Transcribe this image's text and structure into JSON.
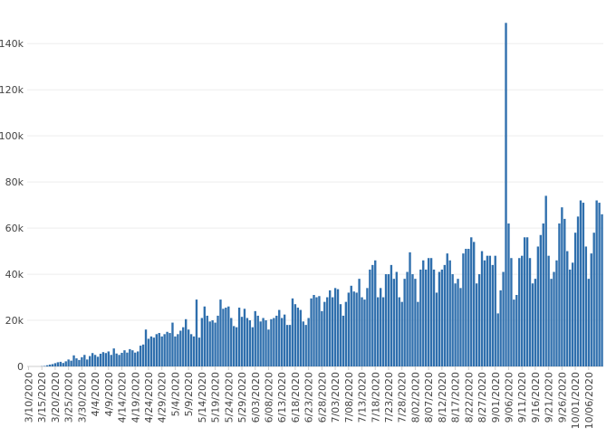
{
  "chart_data": {
    "type": "bar",
    "title": "",
    "xlabel": "",
    "ylabel": "",
    "bar_color": "#2f6fad",
    "grid": true,
    "ylim": [
      0,
      155000
    ],
    "y_ticks": [
      0,
      20000,
      40000,
      60000,
      80000,
      100000,
      120000,
      140000
    ],
    "y_tick_labels": [
      "0",
      "20k",
      "40k",
      "60k",
      "80k",
      "100k",
      "120k",
      "140k"
    ],
    "x_start_date": "3/10/2020",
    "x_tick_labels": [
      "3/10/2020",
      "3/15/2020",
      "3/20/2020",
      "3/25/2020",
      "3/30/2020",
      "4/4/2020",
      "4/9/2020",
      "4/14/2020",
      "4/19/2020",
      "4/24/2020",
      "4/29/2020",
      "5/4/2020",
      "5/9/2020",
      "5/14/2020",
      "5/19/2020",
      "5/24/2020",
      "5/29/2020",
      "6/03/2020",
      "6/08/2020",
      "6/13/2020",
      "6/18/2020",
      "6/23/2020",
      "6/28/2020",
      "7/03/2020",
      "7/08/2020",
      "7/13/2020",
      "7/18/2020",
      "7/23/2020",
      "7/28/2020",
      "8/02/2020",
      "8/07/2020",
      "8/12/2020",
      "8/17/2020",
      "8/22/2020",
      "8/27/2020",
      "9/01/2020",
      "9/06/2020",
      "9/11/2020",
      "9/16/2020",
      "9/21/2020",
      "9/26/2020",
      "10/01/2020",
      "10/06/2020"
    ],
    "values": [
      0,
      0,
      0,
      0,
      0,
      100,
      200,
      500,
      800,
      1000,
      1400,
      1800,
      2000,
      1500,
      2200,
      3000,
      2500,
      4800,
      3500,
      2800,
      4000,
      5000,
      3000,
      4500,
      5800,
      5000,
      4200,
      5500,
      6200,
      5800,
      6500,
      5000,
      7800,
      5600,
      5000,
      5900,
      7000,
      6000,
      7500,
      7000,
      6000,
      6500,
      9000,
      9500,
      16000,
      12000,
      13000,
      12500,
      14000,
      14500,
      13000,
      14000,
      15000,
      14500,
      19000,
      13000,
      14000,
      15500,
      17000,
      20500,
      16000,
      14000,
      13000,
      29000,
      12500,
      21000,
      26000,
      22000,
      19500,
      20000,
      19000,
      22000,
      29000,
      25000,
      25500,
      26000,
      21000,
      17500,
      17000,
      25500,
      21500,
      25000,
      21000,
      20000,
      17000,
      24000,
      22000,
      19500,
      21000,
      20000,
      16000,
      20500,
      21000,
      22000,
      24500,
      21000,
      22500,
      18000,
      18000,
      29500,
      27000,
      25500,
      24500,
      19500,
      18000,
      21000,
      29500,
      31000,
      30000,
      30500,
      24000,
      28000,
      30000,
      33000,
      30000,
      34000,
      33500,
      27000,
      22000,
      28000,
      32000,
      35000,
      32500,
      32000,
      38000,
      30000,
      29000,
      34000,
      42000,
      44000,
      46000,
      30000,
      34000,
      30000,
      40000,
      40000,
      44000,
      38000,
      41000,
      30000,
      28000,
      38000,
      41000,
      49500,
      40000,
      38000,
      28000,
      42000,
      46000,
      42000,
      47000,
      47000,
      42000,
      32000,
      41000,
      42000,
      44000,
      49000,
      46000,
      40000,
      36000,
      38000,
      34000,
      49000,
      51000,
      51000,
      56000,
      54000,
      36000,
      40000,
      50000,
      46000,
      48000,
      48000,
      44000,
      48000,
      23000,
      33000,
      41000,
      149000,
      62000,
      47000,
      29000,
      31000,
      47000,
      48000,
      56000,
      56000,
      47000,
      36000,
      38000,
      52000,
      57000,
      62000,
      74000,
      48000,
      38000,
      41000,
      46000,
      62000,
      69000,
      64000,
      50000,
      42000,
      45000,
      58000,
      65000,
      72000,
      71000,
      52000,
      38000,
      49000,
      58000,
      72000,
      71000,
      66000
    ]
  }
}
